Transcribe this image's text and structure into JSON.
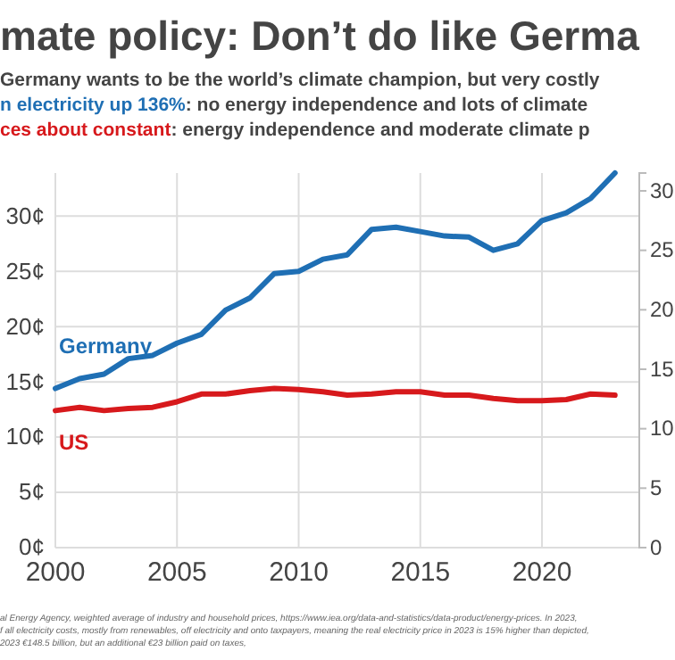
{
  "chart_data": {
    "type": "line",
    "title": "mate policy: Don’t do like Germa",
    "subtitle": "Germany wants to be the world’s climate champion, but very costly\nn electricity up 136%: no energy independence and lots of climate\nces about constant: energy independence and moderate climate p",
    "x": [
      2000,
      2001,
      2002,
      2003,
      2004,
      2005,
      2006,
      2007,
      2008,
      2009,
      2010,
      2011,
      2012,
      2013,
      2014,
      2015,
      2016,
      2017,
      2018,
      2019,
      2020,
      2021,
      2022,
      2023
    ],
    "series": [
      {
        "name": "Germany",
        "color": "#1f6fb4",
        "values": [
          14.4,
          15.3,
          15.7,
          17.1,
          17.4,
          18.5,
          19.3,
          21.5,
          22.6,
          24.8,
          25.0,
          26.1,
          26.5,
          28.8,
          29.0,
          28.6,
          28.2,
          28.1,
          26.9,
          27.5,
          29.6,
          30.3,
          31.6,
          33.9
        ]
      },
      {
        "name": "US",
        "color": "#d7191c",
        "values": [
          12.4,
          12.7,
          12.4,
          12.6,
          12.7,
          13.2,
          13.9,
          13.9,
          14.2,
          14.4,
          14.3,
          14.1,
          13.8,
          13.9,
          14.1,
          14.1,
          13.8,
          13.8,
          13.5,
          13.3,
          13.3,
          13.4,
          13.9,
          13.8
        ]
      }
    ],
    "xlim": [
      2000,
      2024
    ],
    "xticks": [
      2000,
      2005,
      2010,
      2015,
      2020
    ],
    "ylim": [
      0,
      33.9
    ],
    "yticks": [
      {
        "value": 0,
        "label": "0¢"
      },
      {
        "value": 5,
        "label": "5¢"
      },
      {
        "value": 10,
        "label": "10¢"
      },
      {
        "value": 15,
        "label": "15¢"
      },
      {
        "value": 20,
        "label": "20¢"
      },
      {
        "value": 25,
        "label": "25¢"
      },
      {
        "value": 30,
        "label": "30¢"
      }
    ],
    "y2lim": [
      0,
      31.5
    ],
    "y2ticks": [
      0,
      5,
      10,
      15,
      20,
      25,
      30
    ],
    "grid": true,
    "marker": "none",
    "line_style": "solid",
    "annotations": [
      "al Energy Agency, weighted average of industry and household prices, https://www.iea.org/data-and-statistics/data-product/energy-prices. In 2023,",
      "f all electricity costs, mostly from renewables, off electricity and onto taxpayers, meaning the real electricity price in 2023 is 15% higher than depicted,",
      "2023 €148.5 billion, but an additional €23 billion paid on taxes,"
    ]
  }
}
